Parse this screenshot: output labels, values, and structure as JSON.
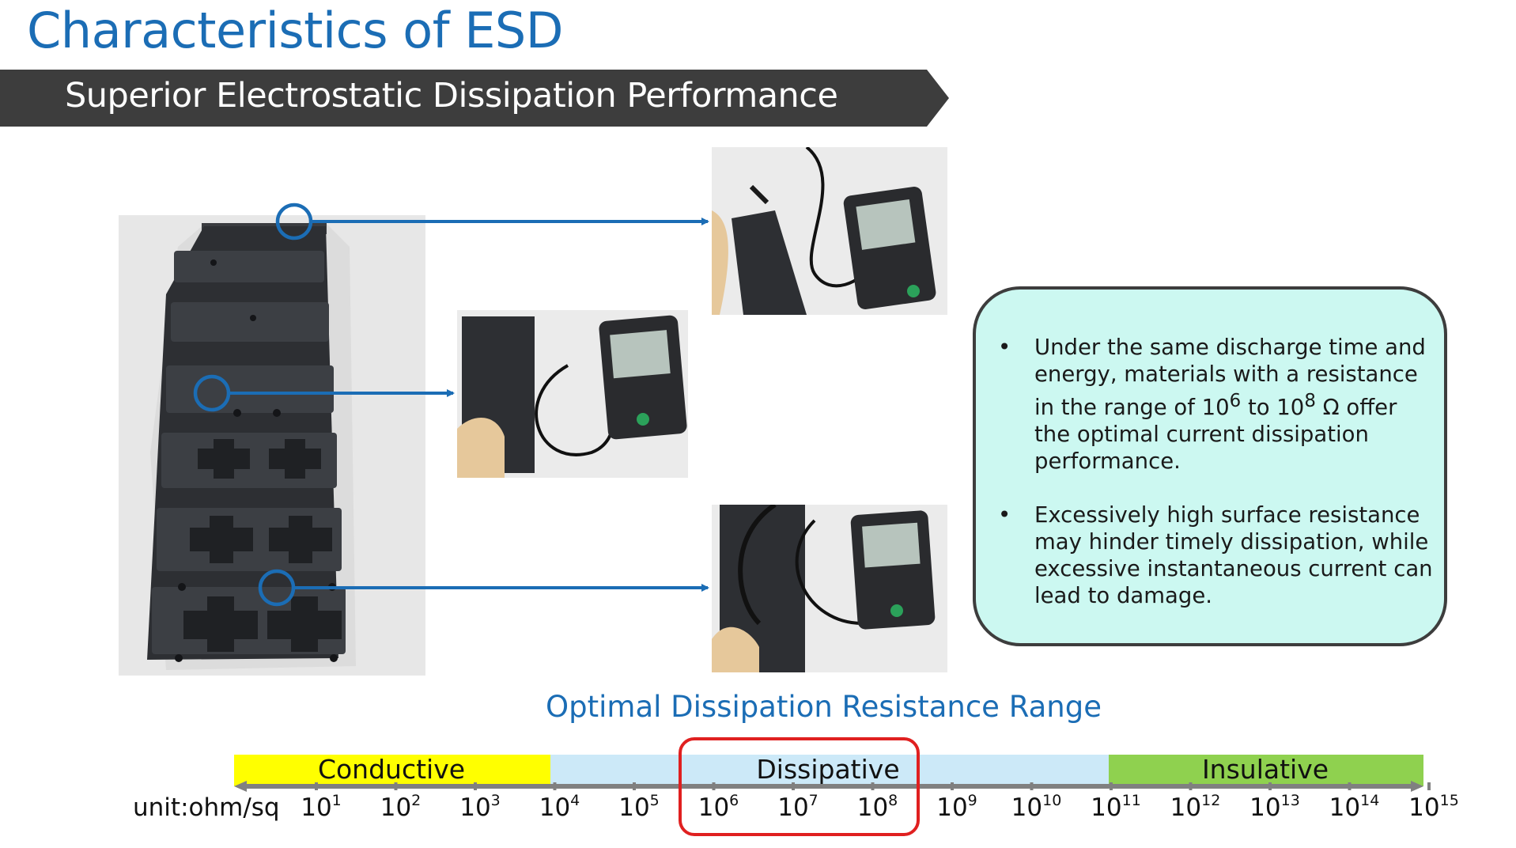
{
  "title": "Characteristics of ESD",
  "subtitle": "Superior Electrostatic Dissipation Performance",
  "photos": {
    "main": "ESD dissipative tray",
    "top": "resistance meter reading",
    "middle": "resistance meter reading",
    "bottom": "resistance meter reading"
  },
  "callout": {
    "bullet_char": "•",
    "item1_pre": "Under the same discharge time and energy, materials with a resistance in the range of 10",
    "item1_sup1": "6",
    "item1_mid": " to 10",
    "item1_sup2": "8",
    "item1_post": " Ω offer the optimal current dissipation performance.",
    "item2": "Excessively high surface resistance may hinder timely dissipation, while excessive instantaneous current can lead to damage."
  },
  "scale": {
    "title": "Optimal Dissipation Resistance Range",
    "unit": "unit:ohm/sq",
    "base": "10",
    "exponents": [
      "1",
      "2",
      "3",
      "4",
      "5",
      "6",
      "7",
      "8",
      "9",
      "10",
      "11",
      "12",
      "13",
      "14",
      "15"
    ],
    "bands": [
      {
        "label": "Conductive",
        "color": "#ffff00"
      },
      {
        "label": "Dissipative",
        "color": "#cce9f8"
      },
      {
        "label": "Insulative",
        "color": "#8fd14f"
      }
    ],
    "highlight": "10^6 – 10^8"
  },
  "colors": {
    "title": "#1b6db5",
    "banner": "#3d3d3d",
    "arrow": "#1b6db5",
    "callout_bg": "#ccf8f1",
    "highlight": "#e02020"
  }
}
